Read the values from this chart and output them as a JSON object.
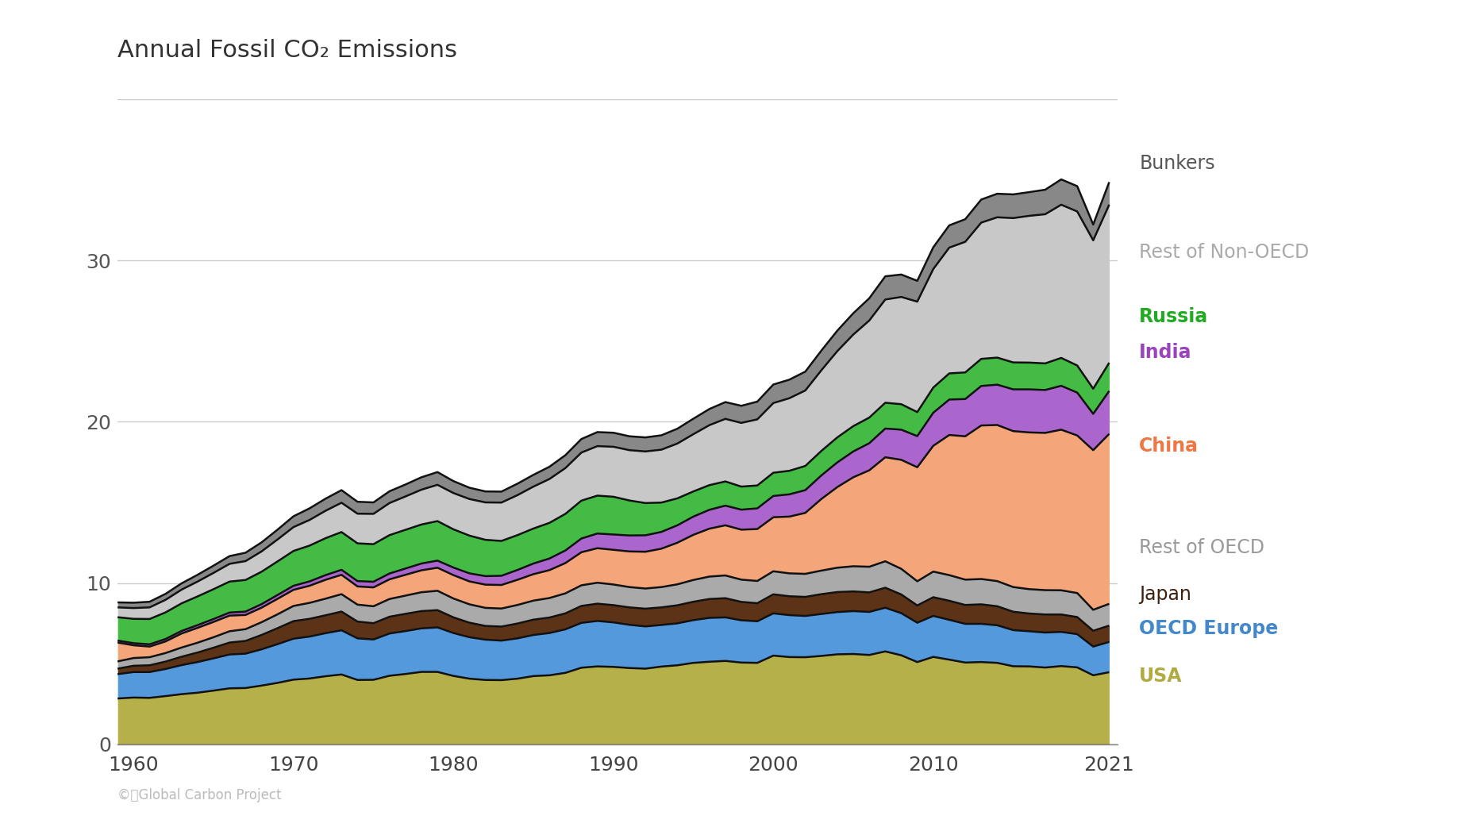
{
  "title": "Annual Fossil CO₂ Emissions",
  "years": [
    1959,
    1960,
    1961,
    1962,
    1963,
    1964,
    1965,
    1966,
    1967,
    1968,
    1969,
    1970,
    1971,
    1972,
    1973,
    1974,
    1975,
    1976,
    1977,
    1978,
    1979,
    1980,
    1981,
    1982,
    1983,
    1984,
    1985,
    1986,
    1987,
    1988,
    1989,
    1990,
    1991,
    1992,
    1993,
    1994,
    1995,
    1996,
    1997,
    1998,
    1999,
    2000,
    2001,
    2002,
    2003,
    2004,
    2005,
    2006,
    2007,
    2008,
    2009,
    2010,
    2011,
    2012,
    2013,
    2014,
    2015,
    2016,
    2017,
    2018,
    2019,
    2020,
    2021
  ],
  "series": {
    "USA": [
      2.84,
      2.9,
      2.88,
      2.99,
      3.11,
      3.2,
      3.33,
      3.47,
      3.49,
      3.64,
      3.81,
      4.01,
      4.08,
      4.22,
      4.33,
      3.99,
      4.0,
      4.25,
      4.36,
      4.49,
      4.49,
      4.24,
      4.07,
      3.99,
      3.98,
      4.07,
      4.23,
      4.28,
      4.43,
      4.75,
      4.83,
      4.8,
      4.73,
      4.69,
      4.82,
      4.9,
      5.05,
      5.12,
      5.17,
      5.07,
      5.05,
      5.5,
      5.41,
      5.4,
      5.48,
      5.58,
      5.6,
      5.54,
      5.76,
      5.52,
      5.1,
      5.42,
      5.25,
      5.07,
      5.1,
      5.05,
      4.84,
      4.83,
      4.76,
      4.85,
      4.77,
      4.28,
      4.47
    ],
    "OECD Europe": [
      1.51,
      1.58,
      1.6,
      1.68,
      1.8,
      1.9,
      2.0,
      2.1,
      2.13,
      2.25,
      2.4,
      2.54,
      2.6,
      2.67,
      2.74,
      2.58,
      2.5,
      2.62,
      2.66,
      2.7,
      2.76,
      2.66,
      2.57,
      2.5,
      2.45,
      2.5,
      2.55,
      2.62,
      2.7,
      2.78,
      2.82,
      2.76,
      2.68,
      2.62,
      2.58,
      2.6,
      2.65,
      2.72,
      2.7,
      2.62,
      2.58,
      2.62,
      2.6,
      2.56,
      2.6,
      2.62,
      2.66,
      2.67,
      2.71,
      2.61,
      2.44,
      2.54,
      2.47,
      2.4,
      2.37,
      2.33,
      2.24,
      2.18,
      2.17,
      2.12,
      2.06,
      1.78,
      1.88
    ],
    "Japan": [
      0.34,
      0.39,
      0.42,
      0.46,
      0.52,
      0.59,
      0.66,
      0.74,
      0.79,
      0.89,
      0.99,
      1.09,
      1.1,
      1.11,
      1.16,
      1.04,
      1.01,
      1.04,
      1.07,
      1.07,
      1.07,
      0.97,
      0.9,
      0.85,
      0.87,
      0.92,
      0.95,
      0.96,
      0.99,
      1.05,
      1.07,
      1.07,
      1.08,
      1.1,
      1.09,
      1.12,
      1.14,
      1.17,
      1.19,
      1.14,
      1.12,
      1.18,
      1.17,
      1.18,
      1.23,
      1.24,
      1.22,
      1.21,
      1.24,
      1.16,
      1.07,
      1.16,
      1.18,
      1.17,
      1.21,
      1.18,
      1.14,
      1.1,
      1.12,
      1.08,
      1.06,
      0.98,
      1.01
    ],
    "Rest of OECD": [
      0.45,
      0.48,
      0.5,
      0.53,
      0.57,
      0.61,
      0.65,
      0.7,
      0.73,
      0.79,
      0.86,
      0.94,
      0.99,
      1.03,
      1.08,
      1.05,
      1.05,
      1.1,
      1.13,
      1.17,
      1.2,
      1.17,
      1.14,
      1.12,
      1.12,
      1.15,
      1.18,
      1.21,
      1.24,
      1.28,
      1.3,
      1.28,
      1.26,
      1.25,
      1.26,
      1.3,
      1.35,
      1.39,
      1.41,
      1.38,
      1.38,
      1.43,
      1.42,
      1.43,
      1.46,
      1.51,
      1.56,
      1.59,
      1.64,
      1.59,
      1.5,
      1.59,
      1.59,
      1.57,
      1.57,
      1.56,
      1.53,
      1.51,
      1.51,
      1.5,
      1.49,
      1.3,
      1.35
    ],
    "China": [
      1.17,
      0.79,
      0.66,
      0.72,
      0.87,
      0.92,
      0.95,
      0.97,
      0.88,
      0.9,
      0.96,
      1.0,
      1.06,
      1.17,
      1.2,
      1.13,
      1.17,
      1.22,
      1.29,
      1.36,
      1.43,
      1.45,
      1.42,
      1.44,
      1.46,
      1.56,
      1.64,
      1.73,
      1.88,
      2.05,
      2.14,
      2.15,
      2.21,
      2.28,
      2.38,
      2.58,
      2.8,
      2.97,
      3.11,
      3.1,
      3.22,
      3.35,
      3.52,
      3.78,
      4.44,
      5.0,
      5.52,
      5.98,
      6.45,
      6.76,
      7.07,
      7.8,
      8.69,
      8.89,
      9.52,
      9.68,
      9.67,
      9.72,
      9.75,
      9.96,
      9.77,
      9.9,
      10.54
    ],
    "India": [
      0.12,
      0.13,
      0.14,
      0.15,
      0.16,
      0.17,
      0.18,
      0.19,
      0.21,
      0.22,
      0.24,
      0.25,
      0.27,
      0.29,
      0.31,
      0.33,
      0.35,
      0.36,
      0.39,
      0.42,
      0.44,
      0.47,
      0.5,
      0.53,
      0.57,
      0.61,
      0.66,
      0.72,
      0.78,
      0.85,
      0.91,
      0.95,
      0.99,
      1.02,
      1.04,
      1.08,
      1.13,
      1.17,
      1.22,
      1.24,
      1.28,
      1.32,
      1.38,
      1.41,
      1.46,
      1.53,
      1.6,
      1.68,
      1.78,
      1.87,
      1.93,
      2.05,
      2.2,
      2.31,
      2.45,
      2.5,
      2.59,
      2.67,
      2.66,
      2.72,
      2.66,
      2.25,
      2.66
    ],
    "Russia": [
      1.45,
      1.51,
      1.57,
      1.65,
      1.71,
      1.78,
      1.85,
      1.92,
      1.96,
      2.01,
      2.08,
      2.16,
      2.22,
      2.29,
      2.34,
      2.34,
      2.33,
      2.38,
      2.4,
      2.42,
      2.45,
      2.37,
      2.34,
      2.25,
      2.16,
      2.16,
      2.17,
      2.21,
      2.27,
      2.35,
      2.35,
      2.34,
      2.17,
      2.0,
      1.82,
      1.67,
      1.56,
      1.53,
      1.5,
      1.43,
      1.42,
      1.44,
      1.46,
      1.5,
      1.52,
      1.55,
      1.57,
      1.59,
      1.6,
      1.58,
      1.49,
      1.56,
      1.62,
      1.65,
      1.68,
      1.68,
      1.67,
      1.66,
      1.65,
      1.73,
      1.68,
      1.56,
      1.75
    ],
    "Rest of Non-OECD": [
      0.61,
      0.67,
      0.72,
      0.78,
      0.85,
      0.92,
      1.01,
      1.1,
      1.17,
      1.26,
      1.36,
      1.48,
      1.59,
      1.7,
      1.82,
      1.84,
      1.88,
      1.99,
      2.07,
      2.16,
      2.25,
      2.25,
      2.27,
      2.32,
      2.38,
      2.48,
      2.6,
      2.72,
      2.84,
      2.98,
      3.07,
      3.1,
      3.12,
      3.2,
      3.28,
      3.4,
      3.55,
      3.72,
      3.88,
      3.95,
      4.1,
      4.32,
      4.5,
      4.68,
      5.0,
      5.35,
      5.68,
      6.02,
      6.4,
      6.65,
      6.85,
      7.35,
      7.8,
      8.1,
      8.45,
      8.7,
      8.95,
      9.1,
      9.25,
      9.5,
      9.55,
      9.2,
      9.8
    ],
    "Bunkers": [
      0.31,
      0.33,
      0.35,
      0.37,
      0.39,
      0.42,
      0.45,
      0.48,
      0.52,
      0.56,
      0.61,
      0.67,
      0.72,
      0.75,
      0.78,
      0.74,
      0.71,
      0.73,
      0.74,
      0.77,
      0.79,
      0.74,
      0.7,
      0.68,
      0.68,
      0.71,
      0.73,
      0.76,
      0.8,
      0.84,
      0.87,
      0.87,
      0.86,
      0.87,
      0.89,
      0.92,
      0.96,
      1.0,
      1.04,
      1.06,
      1.1,
      1.15,
      1.15,
      1.17,
      1.22,
      1.27,
      1.32,
      1.38,
      1.44,
      1.39,
      1.29,
      1.35,
      1.38,
      1.4,
      1.43,
      1.46,
      1.47,
      1.47,
      1.52,
      1.57,
      1.57,
      0.98,
      1.4
    ]
  },
  "colors": {
    "USA": "#b5b04a",
    "OECD Europe": "#5599dd",
    "Japan": "#5c3317",
    "Rest of OECD": "#aaaaaa",
    "China": "#f4a57a",
    "India": "#aa66cc",
    "Russia": "#44bb44",
    "Rest of Non-OECD": "#c8c8c8",
    "Bunkers": "#888888"
  },
  "label_colors": {
    "USA": "#b0aa40",
    "OECD Europe": "#4488cc",
    "Japan": "#3d2010",
    "Rest of OECD": "#999999",
    "China": "#ee7744",
    "India": "#9944bb",
    "Russia": "#22aa22",
    "Rest of Non-OECD": "#aaaaaa",
    "Bunkers": "#555555"
  },
  "stack_order": [
    "USA",
    "OECD Europe",
    "Japan",
    "Rest of OECD",
    "China",
    "India",
    "Russia",
    "Rest of Non-OECD",
    "Bunkers"
  ],
  "xlim": [
    1959,
    2021.5
  ],
  "ylim": [
    0,
    40
  ],
  "yticks": [
    0,
    10,
    20,
    30,
    40
  ],
  "xticks": [
    1960,
    1970,
    1980,
    1990,
    2000,
    2010,
    2021
  ],
  "background_color": "#ffffff",
  "grid_color": "#cccccc",
  "source_text": "©ⓘGlobal Carbon Project",
  "outline_color": "#111111",
  "label_positions_y": {
    "Bunkers": 36.0,
    "Rest of Non-OECD": 30.5,
    "Russia": 26.5,
    "India": 24.3,
    "China": 18.5,
    "Rest of OECD": 12.2,
    "Japan": 9.3,
    "OECD Europe": 7.2,
    "USA": 4.2
  }
}
